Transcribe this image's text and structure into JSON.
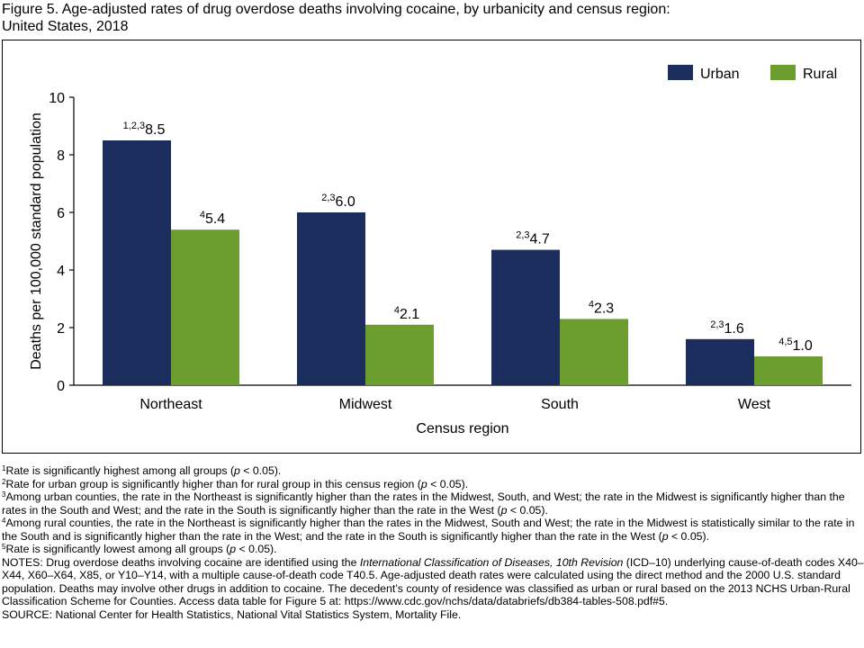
{
  "title_line1": "Figure 5. Age-adjusted rates of drug overdose deaths involving cocaine, by urbanicity and census region:",
  "title_line2": "United States, 2018",
  "chart_data": {
    "type": "bar",
    "categories": [
      "Northeast",
      "Midwest",
      "South",
      "West"
    ],
    "series": [
      {
        "name": "Urban",
        "color": "#1b2d5c",
        "values": [
          8.5,
          6.0,
          4.7,
          1.6
        ],
        "superscripts": [
          "1,2,3",
          "2,3",
          "2,3",
          "2,3"
        ]
      },
      {
        "name": "Rural",
        "color": "#6b9e2e",
        "values": [
          5.4,
          2.1,
          2.3,
          1.0
        ],
        "superscripts": [
          "4",
          "4",
          "4",
          "4,5"
        ]
      }
    ],
    "xlabel": "Census region",
    "ylabel": "Deaths per 100,000 standard population",
    "ylim": [
      0,
      10
    ],
    "yticks": [
      0,
      2,
      4,
      6,
      8,
      10
    ],
    "legend_position": "top-right",
    "grid": false
  },
  "footnotes": {
    "fn1_mark": "1",
    "fn1_a": "Rate is significantly highest among all groups (",
    "fn1_p": "p",
    "fn1_b": " < 0.05).",
    "fn2_mark": "2",
    "fn2_a": "Rate for urban group is significantly higher than for rural group in this census region (",
    "fn2_p": "p",
    "fn2_b": " < 0.05).",
    "fn3_mark": "3",
    "fn3_a": "Among urban counties, the rate in the Northeast is significantly higher than the rates in the Midwest, South, and West; the rate in the Midwest is significantly higher than the rates in the South and West; and the rate in the South is significantly higher than the rate in the West (",
    "fn3_p": "p",
    "fn3_b": " < 0.05).",
    "fn4_mark": "4",
    "fn4_a": "Among rural counties, the rate in the Northeast is significantly higher than the rates in the Midwest, South and West; the rate in the Midwest is statistically similar to the rate in the South and is significantly higher than the rate in the West; and the rate in the South is significantly higher than the rate in the West (",
    "fn4_p": "p",
    "fn4_b": " < 0.05).",
    "fn5_mark": "5",
    "fn5_a": "Rate is significantly lowest among all groups (",
    "fn5_p": "p",
    "fn5_b": " < 0.05).",
    "notes_a": "NOTES: Drug overdose deaths involving cocaine are identified using the ",
    "notes_italic": "International Classification of Diseases, 10th Revision",
    "notes_b": " (ICD–10) underlying cause-of-death codes X40–X44, X60–X64, X85, or Y10–Y14, with a multiple cause-of-death code T40.5. Age-adjusted death rates were calculated using the direct method and the 2000 U.S. standard population. Deaths may involve other drugs in addition to cocaine. The decedent’s county of residence was classified as urban or rural based on the 2013 NCHS Urban-Rural Classification Scheme for Counties. Access data table for Figure 5 at: https://www.cdc.gov/nchs/data/databriefs/db384-tables-508.pdf#5.",
    "source": "SOURCE: National Center for Health Statistics, National Vital Statistics System, Mortality File."
  }
}
